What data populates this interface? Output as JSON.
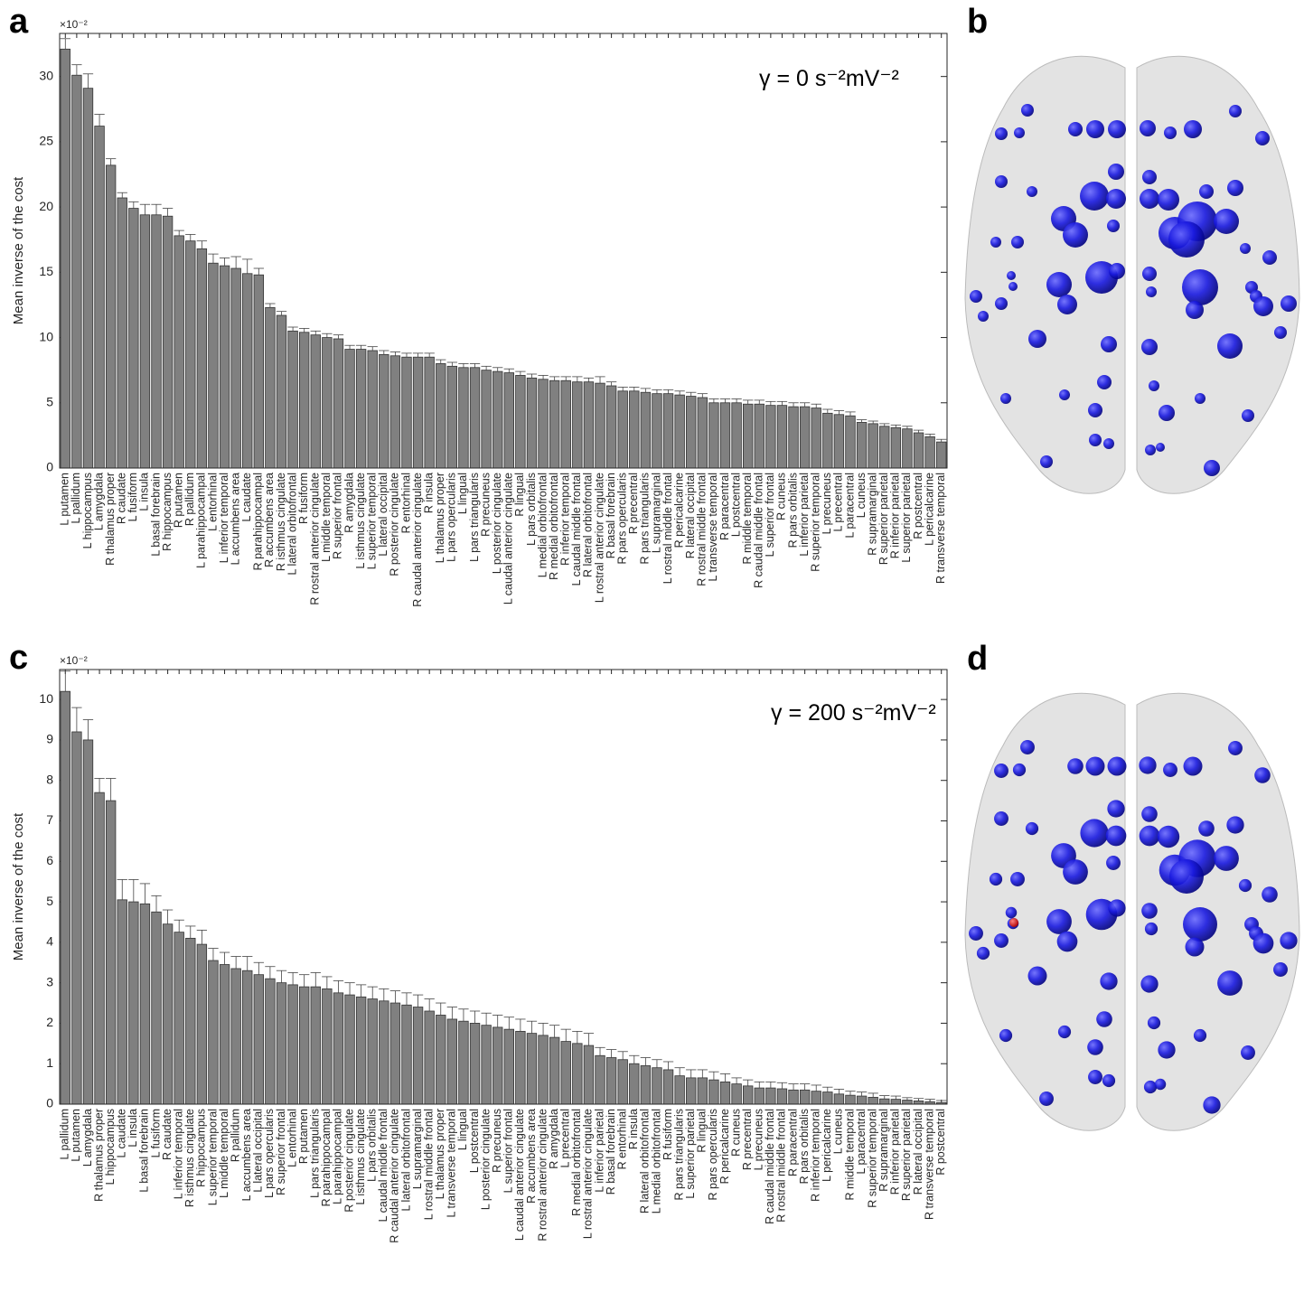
{
  "chart_data": [
    {
      "type": "bar",
      "panel_label": "a",
      "annotation": "γ = 0 s⁻²mV⁻²",
      "ylabel": "Mean inverse of the cost",
      "exponent_label": "×10⁻²",
      "color": "#808080",
      "categories": [
        "L putamen",
        "L pallidum",
        "L hippocampus",
        "L amygdala",
        "R thalamus proper",
        "R caudate",
        "L fusiform",
        "L insula",
        "L basal forebrain",
        "R hippocampus",
        "R putamen",
        "R pallidum",
        "L parahippocampal",
        "L entorhinal",
        "L inferior temporal",
        "L accumbens area",
        "L caudate",
        "R parahippocampal",
        "R accumbens area",
        "R isthmus cingulate",
        "L lateral orbitofrontal",
        "R fusiform",
        "R rostral anterior cingulate",
        "L middle temporal",
        "R superior frontal",
        "R amygdala",
        "L isthmus cingulate",
        "L superior temporal",
        "L lateral occipital",
        "R posterior cingulate",
        "R entorhinal",
        "R caudal anterior cingulate",
        "R insula",
        "L thalamus proper",
        "L pars opercularis",
        "L lingual",
        "L pars triangularis",
        "R precuneus",
        "L posterior cingulate",
        "L caudal anterior cingulate",
        "R lingual",
        "L pars orbitalis",
        "L medial orbitofrontal",
        "R medial orbitofrontal",
        "R inferior temporal",
        "L caudal middle frontal",
        "R lateral orbitofrontal",
        "L rostral anterior cingulate",
        "R basal forebrain",
        "R pars opercularis",
        "R precentral",
        "R pars triangularis",
        "L supramarginal",
        "L rostral middle frontal",
        "R pericalcarine",
        "R lateral occipital",
        "R rostral middle frontal",
        "L transverse temporal",
        "R paracentral",
        "L postcentral",
        "R middle temporal",
        "R caudal middle frontal",
        "L superior frontal",
        "R cuneus",
        "R pars orbitalis",
        "L inferior parietal",
        "R superior temporal",
        "L precuneus",
        "L precentral",
        "L paracentral",
        "L cuneus",
        "R supramarginal",
        "R superior parietal",
        "R inferior parietal",
        "L superior parietal",
        "R postcentral",
        "L pericalcarine",
        "R transverse temporal"
      ],
      "values": [
        32.1,
        30.1,
        29.1,
        26.2,
        23.2,
        20.7,
        19.9,
        19.4,
        19.4,
        19.3,
        17.8,
        17.4,
        16.8,
        15.7,
        15.5,
        15.3,
        14.9,
        14.8,
        12.3,
        11.7,
        10.5,
        10.4,
        10.2,
        10.0,
        9.9,
        9.1,
        9.1,
        9.0,
        8.7,
        8.6,
        8.5,
        8.5,
        8.5,
        8.0,
        7.8,
        7.7,
        7.7,
        7.5,
        7.4,
        7.3,
        7.1,
        6.9,
        6.8,
        6.7,
        6.7,
        6.6,
        6.6,
        6.5,
        6.3,
        5.9,
        5.9,
        5.8,
        5.7,
        5.7,
        5.6,
        5.5,
        5.4,
        5.0,
        5.0,
        5.0,
        4.9,
        4.9,
        4.8,
        4.8,
        4.7,
        4.7,
        4.6,
        4.2,
        4.1,
        4.0,
        3.5,
        3.4,
        3.2,
        3.1,
        3.0,
        2.7,
        2.4,
        2.0
      ],
      "errors": [
        0.8,
        0.8,
        1.1,
        0.9,
        0.5,
        0.4,
        0.5,
        0.8,
        0.8,
        0.6,
        0.4,
        0.5,
        0.6,
        0.7,
        0.6,
        0.9,
        1.1,
        0.5,
        0.3,
        0.3,
        0.3,
        0.3,
        0.3,
        0.3,
        0.3,
        0.3,
        0.3,
        0.3,
        0.3,
        0.3,
        0.3,
        0.3,
        0.3,
        0.3,
        0.3,
        0.3,
        0.3,
        0.3,
        0.3,
        0.3,
        0.3,
        0.3,
        0.3,
        0.3,
        0.3,
        0.4,
        0.3,
        0.5,
        0.3,
        0.3,
        0.3,
        0.3,
        0.3,
        0.3,
        0.3,
        0.3,
        0.3,
        0.3,
        0.3,
        0.3,
        0.3,
        0.3,
        0.3,
        0.3,
        0.3,
        0.3,
        0.3,
        0.3,
        0.3,
        0.3,
        0.2,
        0.2,
        0.2,
        0.2,
        0.2,
        0.2,
        0.2,
        0.2
      ],
      "ylim": [
        0,
        33.3
      ],
      "yticks": [
        0,
        5,
        10,
        15,
        20,
        25,
        30
      ]
    },
    {
      "type": "bar",
      "panel_label": "c",
      "annotation": "γ = 200 s⁻²mV⁻²",
      "ylabel": "Mean inverse of the cost",
      "exponent_label": "×10⁻²",
      "color": "#808080",
      "categories": [
        "L pallidum",
        "L putamen",
        "L amygdala",
        "R thalamus proper",
        "L hippocampus",
        "L caudate",
        "L insula",
        "L basal forebrain",
        "L fusiform",
        "R caudate",
        "L inferior temporal",
        "R isthmus cingulate",
        "R hippocampus",
        "L superior temporal",
        "L middle temporal",
        "R pallidum",
        "L accumbens area",
        "L lateral occipital",
        "L pars opercularis",
        "R superior frontal",
        "L entorhinal",
        "R putamen",
        "L pars triangularis",
        "R parahippocampal",
        "L parahippocampal",
        "R posterior cingulate",
        "L isthmus cingulate",
        "L pars orbitalis",
        "L caudal middle frontal",
        "R caudal anterior cingulate",
        "L lateral orbitofrontal",
        "L supramarginal",
        "L rostral middle frontal",
        "L thalamus proper",
        "L transverse temporal",
        "L lingual",
        "L postcentral",
        "L posterior cingulate",
        "R precuneus",
        "L superior frontal",
        "L caudal anterior cingulate",
        "R accumbens area",
        "R rostral anterior cingulate",
        "R amygdala",
        "L precentral",
        "R medial orbitofrontal",
        "L rostral anterior cingulate",
        "L inferior parietal",
        "R basal forebrain",
        "R entorhinal",
        "R insula",
        "R lateral orbitofrontal",
        "L medial orbitofrontal",
        "R fusiform",
        "R pars triangularis",
        "L superior parietal",
        "R lingual",
        "R pars opercularis",
        "R pericalcarine",
        "R cuneus",
        "R precentral",
        "L precuneus",
        "R caudal middle frontal",
        "R rostral middle frontal",
        "R paracentral",
        "R pars orbitalis",
        "R inferior temporal",
        "L pericalcarine",
        "L cuneus",
        "R middle temporal",
        "L paracentral",
        "R superior temporal",
        "R supramarginal",
        "R inferior parietal",
        "R superior parietal",
        "R lateral occipital",
        "R transverse temporal",
        "R postcentral"
      ],
      "values": [
        10.2,
        9.2,
        9.0,
        7.7,
        7.5,
        5.05,
        5.0,
        4.95,
        4.75,
        4.45,
        4.25,
        4.1,
        3.95,
        3.55,
        3.45,
        3.35,
        3.3,
        3.2,
        3.1,
        3.0,
        2.95,
        2.9,
        2.9,
        2.85,
        2.75,
        2.7,
        2.65,
        2.6,
        2.55,
        2.5,
        2.45,
        2.4,
        2.3,
        2.2,
        2.1,
        2.05,
        2.0,
        1.95,
        1.9,
        1.85,
        1.8,
        1.75,
        1.7,
        1.65,
        1.55,
        1.5,
        1.45,
        1.2,
        1.15,
        1.1,
        1.0,
        0.95,
        0.9,
        0.85,
        0.7,
        0.65,
        0.65,
        0.6,
        0.55,
        0.5,
        0.45,
        0.4,
        0.4,
        0.38,
        0.35,
        0.35,
        0.32,
        0.3,
        0.25,
        0.22,
        0.2,
        0.17,
        0.13,
        0.12,
        0.1,
        0.08,
        0.06,
        0.04
      ],
      "errors": [
        0.5,
        0.6,
        0.5,
        0.35,
        0.55,
        0.5,
        0.55,
        0.5,
        0.4,
        0.35,
        0.3,
        0.3,
        0.35,
        0.3,
        0.3,
        0.3,
        0.35,
        0.3,
        0.3,
        0.3,
        0.3,
        0.3,
        0.35,
        0.3,
        0.3,
        0.3,
        0.3,
        0.3,
        0.3,
        0.3,
        0.3,
        0.3,
        0.3,
        0.3,
        0.3,
        0.3,
        0.3,
        0.3,
        0.3,
        0.3,
        0.3,
        0.3,
        0.3,
        0.3,
        0.3,
        0.3,
        0.3,
        0.2,
        0.2,
        0.2,
        0.2,
        0.2,
        0.2,
        0.2,
        0.2,
        0.2,
        0.2,
        0.2,
        0.2,
        0.15,
        0.15,
        0.15,
        0.15,
        0.15,
        0.15,
        0.15,
        0.15,
        0.12,
        0.12,
        0.1,
        0.1,
        0.1,
        0.08,
        0.08,
        0.06,
        0.06,
        0.06,
        0.05
      ],
      "ylim": [
        0,
        10.74
      ],
      "yticks": [
        0,
        1,
        2,
        3,
        4,
        5,
        6,
        7,
        8,
        9,
        10
      ]
    }
  ],
  "brain_panels": [
    {
      "label": "b"
    },
    {
      "label": "d"
    }
  ]
}
